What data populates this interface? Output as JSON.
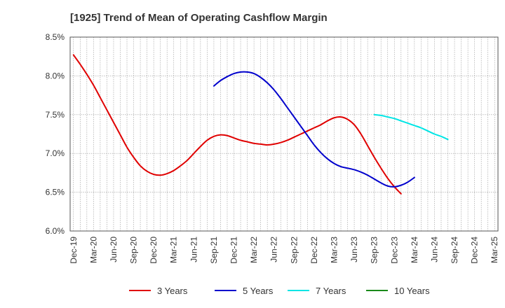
{
  "chart_data": {
    "type": "line",
    "title": "[1925]  Trend of Mean of Operating Cashflow Margin",
    "xlabel": "",
    "ylabel": "",
    "ylim": [
      6.0,
      8.5
    ],
    "y_ticks": [
      "6.0%",
      "6.5%",
      "7.0%",
      "7.5%",
      "8.0%",
      "8.5%"
    ],
    "x_ticks": [
      "Dec-19",
      "Mar-20",
      "Jun-20",
      "Sep-20",
      "Dec-20",
      "Mar-21",
      "Jun-21",
      "Sep-21",
      "Dec-21",
      "Mar-22",
      "Jun-22",
      "Sep-22",
      "Dec-22",
      "Mar-23",
      "Jun-23",
      "Sep-23",
      "Dec-23",
      "Mar-24",
      "Jun-24",
      "Sep-24",
      "Dec-24",
      "Mar-25"
    ],
    "grid": "vertical dotted monthly, horizontal dotted",
    "legend_position": "bottom",
    "series": [
      {
        "name": "3 Years",
        "color": "#e00000",
        "start": "Dec-19",
        "values": [
          8.27,
          8.15,
          8.02,
          7.88,
          7.72,
          7.56,
          7.4,
          7.24,
          7.08,
          6.95,
          6.84,
          6.77,
          6.73,
          6.72,
          6.74,
          6.78,
          6.84,
          6.91,
          7.0,
          7.09,
          7.17,
          7.22,
          7.24,
          7.23,
          7.2,
          7.17,
          7.15,
          7.13,
          7.12,
          7.11,
          7.12,
          7.14,
          7.17,
          7.21,
          7.25,
          7.29,
          7.33,
          7.37,
          7.42,
          7.46,
          7.47,
          7.44,
          7.37,
          7.25,
          7.1,
          6.95,
          6.81,
          6.68,
          6.57,
          6.48
        ]
      },
      {
        "name": "5 Years",
        "color": "#0000cc",
        "start": "Sep-21",
        "values": [
          7.87,
          7.94,
          7.99,
          8.03,
          8.05,
          8.05,
          8.03,
          7.98,
          7.91,
          7.82,
          7.71,
          7.59,
          7.47,
          7.35,
          7.23,
          7.11,
          7.01,
          6.93,
          6.87,
          6.83,
          6.81,
          6.79,
          6.76,
          6.72,
          6.67,
          6.62,
          6.58,
          6.57,
          6.59,
          6.63,
          6.69
        ]
      },
      {
        "name": "7 Years",
        "color": "#00e5e5",
        "start": "Sep-23",
        "values": [
          7.5,
          7.49,
          7.47,
          7.45,
          7.42,
          7.39,
          7.36,
          7.33,
          7.29,
          7.25,
          7.22,
          7.18
        ]
      },
      {
        "name": "10 Years",
        "color": "#1a8a1a",
        "start": "Sep-24",
        "values": []
      }
    ]
  }
}
